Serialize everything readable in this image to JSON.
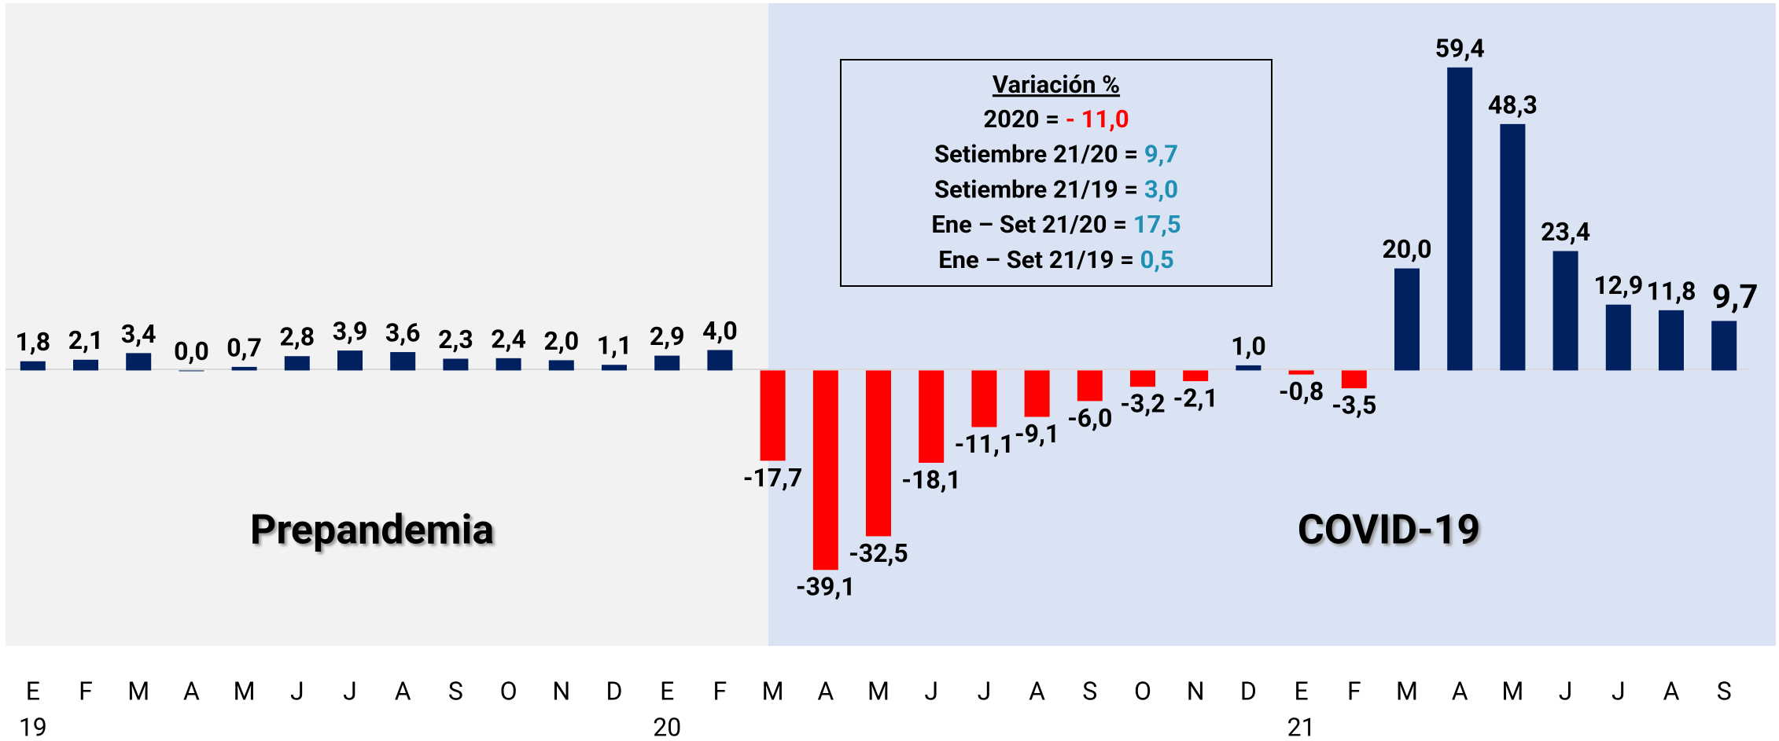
{
  "chart_data": {
    "type": "bar",
    "categories": [
      "E",
      "F",
      "M",
      "A",
      "M",
      "J",
      "J",
      "A",
      "S",
      "O",
      "N",
      "D",
      "E",
      "F",
      "M",
      "A",
      "M",
      "J",
      "J",
      "A",
      "S",
      "O",
      "N",
      "D",
      "E",
      "F",
      "M",
      "A",
      "M",
      "J",
      "J",
      "A",
      "S"
    ],
    "year_labels": [
      "19",
      null,
      null,
      null,
      null,
      null,
      null,
      null,
      null,
      null,
      null,
      null,
      "20",
      null,
      null,
      null,
      null,
      null,
      null,
      null,
      null,
      null,
      null,
      null,
      "21",
      null,
      null,
      null,
      null,
      null,
      null,
      null,
      null
    ],
    "values": [
      1.8,
      2.1,
      3.4,
      0.0,
      0.7,
      2.8,
      3.9,
      3.6,
      2.3,
      2.4,
      2.0,
      1.1,
      2.9,
      4.0,
      -17.7,
      -39.1,
      -32.5,
      -18.1,
      -11.1,
      -9.1,
      -6.0,
      -3.2,
      -2.1,
      1.0,
      -0.8,
      -3.5,
      20.0,
      59.4,
      48.3,
      23.4,
      12.9,
      11.8,
      9.7
    ],
    "value_labels": [
      "1,8",
      "2,1",
      "3,4",
      "0,0",
      "0,7",
      "2,8",
      "3,9",
      "3,6",
      "2,3",
      "2,4",
      "2,0",
      "1,1",
      "2,9",
      "4,0",
      "-17,7",
      "-39,1",
      "-32,5",
      "-18,1",
      "-11,1",
      "-9,1",
      "-6,0",
      "-3,2",
      "-2,1",
      "1,0",
      "-0,8",
      "-3,5",
      "20,0",
      "59,4",
      "48,3",
      "23,4",
      "12,9",
      "11,8",
      "9,7"
    ],
    "color": "#002060",
    "negative_color": "#ff0000",
    "ylim": [
      -54,
      72
    ],
    "annotations": [
      "Prepandemia",
      "COVID-19"
    ],
    "box": {
      "title": "Variación %",
      "lines": [
        {
          "label": "2020 = ",
          "value": "- 11,0",
          "color": "#ff0000"
        },
        {
          "label": "Setiembre 21/20 = ",
          "value": "9,7",
          "color": "#1f8fb3"
        },
        {
          "label": "Setiembre 21/19 = ",
          "value": "3,0",
          "color": "#1f8fb3"
        },
        {
          "label": "Ene – Set 21/20 = ",
          "value": "17,5",
          "color": "#1f8fb3"
        },
        {
          "label": "Ene – Set 21/19 = ",
          "value": "0,5",
          "color": "#1f8fb3"
        }
      ]
    }
  }
}
